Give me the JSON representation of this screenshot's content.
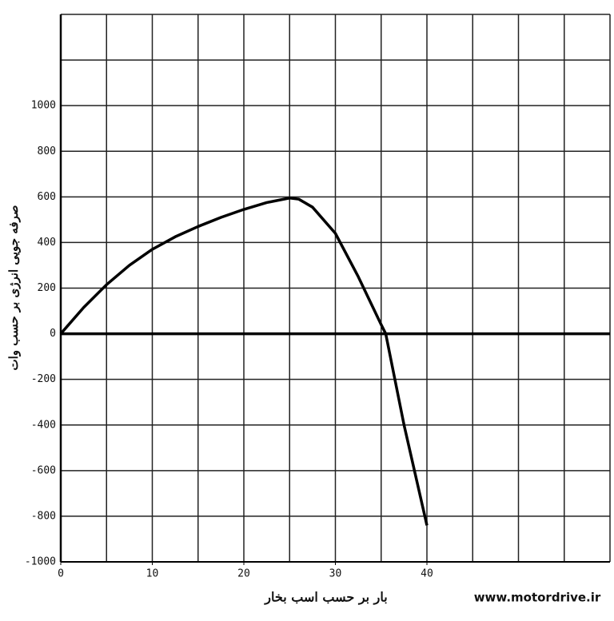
{
  "chart_data": {
    "type": "line",
    "x_label": "بار بر حسب اسب بخار",
    "y_label": "صرفه جویی انرژی بر حسب وات",
    "watermark": "www.motordrive.ir",
    "series": [
      {
        "color": "#000000",
        "x": [
          0,
          2.5,
          5,
          7.5,
          10,
          12.5,
          15,
          17.5,
          20,
          22.5,
          25,
          26,
          27.5,
          30,
          32.5,
          35,
          35.5,
          37.5,
          40
        ],
        "values": [
          0,
          115,
          215,
          300,
          370,
          425,
          470,
          510,
          545,
          575,
          595,
          590,
          555,
          440,
          250,
          40,
          0,
          -400,
          -840
        ]
      }
    ],
    "xlim": [
      0,
      60
    ],
    "xticks": [
      0,
      10,
      20,
      30,
      40
    ],
    "ylim": [
      -1000,
      1400
    ],
    "yticks": [
      -1000,
      -800,
      -600,
      -400,
      -200,
      0,
      200,
      400,
      600,
      800,
      1000
    ],
    "grid": {
      "x_step": 5,
      "y_step": 200
    }
  }
}
